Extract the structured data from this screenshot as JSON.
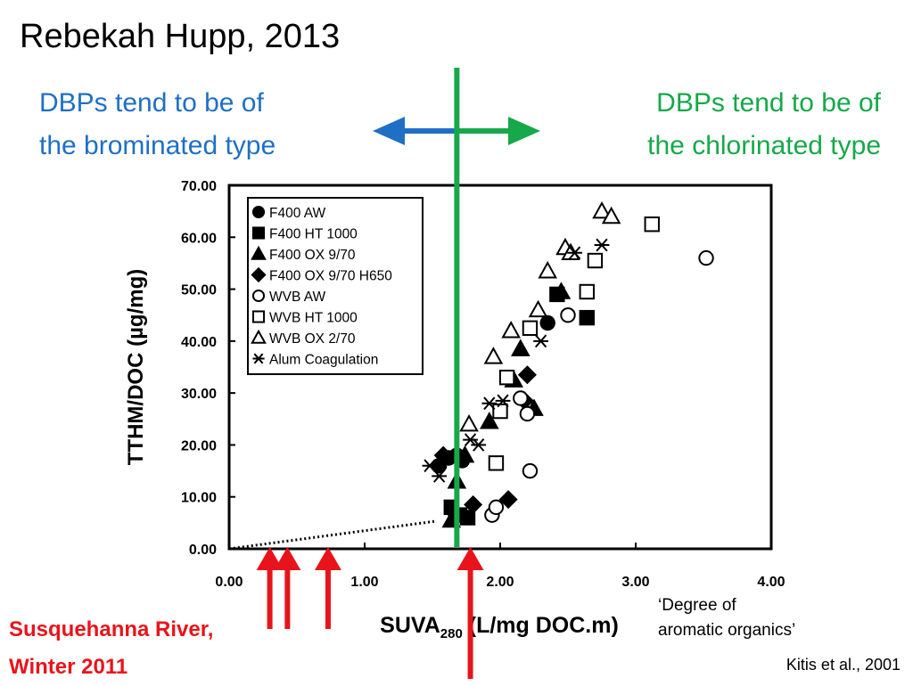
{
  "slide": {
    "title": "Rebekah Hupp, 2013",
    "left_note": [
      "DBPs tend to be of",
      "the brominated type"
    ],
    "right_note": [
      "DBPs tend to be of",
      "the chlorinated type"
    ],
    "river_note": [
      "Susquehanna River,",
      "Winter 2011"
    ],
    "aromatic_note": [
      "‘Degree of",
      "aromatic organics’"
    ],
    "citation": "Kitis et al., 2001",
    "colors": {
      "blue": "#1f6fc5",
      "green": "#16a84a",
      "red": "#e8141b"
    },
    "divider_suva": 1.68,
    "river_arrows_suva": [
      0.3,
      0.43,
      0.73,
      1.78
    ]
  },
  "chart_data": {
    "type": "scatter",
    "title": "",
    "xlabel": "SUVA",
    "xlabel_sub": "280",
    "xlabel_unit": " (L/mg DOC.m)",
    "ylabel": "TTHM/DOC (µg/mg)",
    "xlim": [
      0,
      4
    ],
    "ylim": [
      0,
      70
    ],
    "x_ticks": [
      "0.00",
      "1.00",
      "2.00",
      "3.00",
      "4.00"
    ],
    "y_ticks": [
      "0.00",
      "10.00",
      "20.00",
      "30.00",
      "40.00",
      "50.00",
      "60.00",
      "70.00"
    ],
    "legend_position": "top-left",
    "grid": false,
    "series": [
      {
        "name": "F400 AW",
        "marker": "filled-circle",
        "points": [
          [
            1.55,
            16
          ],
          [
            1.62,
            17.5
          ],
          [
            1.68,
            18
          ],
          [
            1.72,
            17
          ],
          [
            2.35,
            43.5
          ]
        ]
      },
      {
        "name": "F400 HT 1000",
        "marker": "filled-square",
        "points": [
          [
            1.64,
            8
          ],
          [
            1.7,
            6.5
          ],
          [
            1.76,
            6
          ],
          [
            2.42,
            49
          ],
          [
            2.64,
            44.5
          ]
        ]
      },
      {
        "name": "F400 OX 9/70",
        "marker": "filled-triangle",
        "points": [
          [
            1.64,
            5.5
          ],
          [
            1.68,
            13
          ],
          [
            1.74,
            18
          ],
          [
            1.92,
            24.5
          ],
          [
            2.1,
            32.5
          ],
          [
            2.15,
            38.5
          ],
          [
            2.25,
            27
          ],
          [
            2.45,
            49.5
          ]
        ]
      },
      {
        "name": "F400 OX 9/70 H650",
        "marker": "filled-diamond",
        "points": [
          [
            1.68,
            6.5
          ],
          [
            1.8,
            8.5
          ],
          [
            2.06,
            9.5
          ],
          [
            2.2,
            33.5
          ],
          [
            2.18,
            28.5
          ],
          [
            1.58,
            18
          ]
        ]
      },
      {
        "name": "WVB AW",
        "marker": "open-circle",
        "points": [
          [
            1.94,
            6.5
          ],
          [
            1.97,
            8
          ],
          [
            2.22,
            15
          ],
          [
            2.2,
            26
          ],
          [
            2.15,
            29
          ],
          [
            2.5,
            45
          ],
          [
            3.52,
            56
          ]
        ]
      },
      {
        "name": "WVB HT 1000",
        "marker": "open-square",
        "points": [
          [
            1.97,
            16.5
          ],
          [
            2.0,
            26.5
          ],
          [
            2.05,
            33
          ],
          [
            2.22,
            42.5
          ],
          [
            2.64,
            49.5
          ],
          [
            2.7,
            55.5
          ],
          [
            3.12,
            62.5
          ]
        ]
      },
      {
        "name": "WVB OX 2/70",
        "marker": "open-triangle",
        "points": [
          [
            1.77,
            24
          ],
          [
            1.95,
            37
          ],
          [
            2.08,
            42
          ],
          [
            2.28,
            46
          ],
          [
            2.35,
            53.5
          ],
          [
            2.48,
            58
          ],
          [
            2.52,
            57
          ],
          [
            2.75,
            65
          ],
          [
            2.82,
            64
          ]
        ]
      },
      {
        "name": "Alum Coagulation",
        "marker": "asterisk",
        "points": [
          [
            1.48,
            16
          ],
          [
            1.55,
            14
          ],
          [
            1.6,
            17.5
          ],
          [
            1.78,
            21
          ],
          [
            1.84,
            20
          ],
          [
            1.92,
            28
          ],
          [
            2.02,
            28.5
          ],
          [
            2.3,
            40
          ],
          [
            2.55,
            57
          ],
          [
            2.75,
            58.5
          ]
        ]
      }
    ],
    "trend_line": {
      "style": "dotted",
      "from": [
        0,
        0
      ],
      "to": [
        1.52,
        5.3
      ]
    }
  }
}
